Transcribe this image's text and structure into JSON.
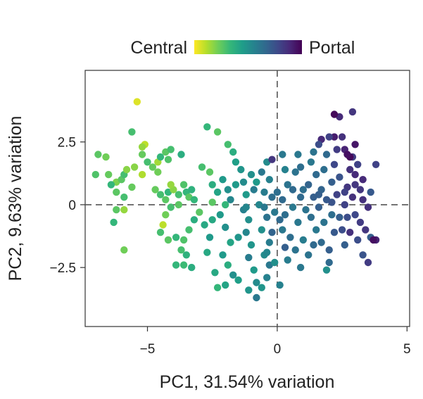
{
  "chart_data": {
    "type": "scatter",
    "xlabel": "PC1, 31.54% variation",
    "ylabel": "PC2, 9.63% variation",
    "xlim": [
      -7.4,
      5.1
    ],
    "ylim": [
      -4.85,
      5.35
    ],
    "xticks": [
      -5,
      0,
      5
    ],
    "xtick_labels": [
      "−5",
      "0",
      "5"
    ],
    "yticks": [
      -2.5,
      0,
      2.5
    ],
    "ytick_labels": [
      "−2.5",
      "0",
      "2.5"
    ],
    "reference_lines": {
      "x": 0,
      "y": 0,
      "style": "dashed"
    },
    "grid": false,
    "colorbar": {
      "low_label": "Central",
      "high_label": "Portal",
      "colormap": [
        "#fde725",
        "#b5de2b",
        "#6ece58",
        "#35b779",
        "#1f9e89",
        "#26828e",
        "#31688e",
        "#3e4989",
        "#482878",
        "#440154"
      ],
      "placement": "top"
    },
    "points": [
      {
        "x": -6.6,
        "y": 1.9,
        "c": 0.22
      },
      {
        "x": -6.9,
        "y": 2.0,
        "c": 0.26
      },
      {
        "x": -7.0,
        "y": 1.2,
        "c": 0.28
      },
      {
        "x": -6.5,
        "y": 1.2,
        "c": 0.24
      },
      {
        "x": -6.2,
        "y": 0.9,
        "c": 0.2
      },
      {
        "x": -6.4,
        "y": 0.8,
        "c": 0.34
      },
      {
        "x": -6.0,
        "y": 1.0,
        "c": 0.26
      },
      {
        "x": -5.9,
        "y": 1.2,
        "c": 0.3
      },
      {
        "x": -5.8,
        "y": 1.4,
        "c": 0.18
      },
      {
        "x": -6.2,
        "y": 0.5,
        "c": 0.26
      },
      {
        "x": -5.9,
        "y": 0.3,
        "c": 0.3
      },
      {
        "x": -6.2,
        "y": -0.2,
        "c": 0.26
      },
      {
        "x": -5.9,
        "y": -0.2,
        "c": 0.16
      },
      {
        "x": -6.3,
        "y": -0.7,
        "c": 0.34
      },
      {
        "x": -5.9,
        "y": -1.8,
        "c": 0.22
      },
      {
        "x": -5.4,
        "y": 4.1,
        "c": 0.05
      },
      {
        "x": -5.6,
        "y": 2.9,
        "c": 0.3
      },
      {
        "x": -5.1,
        "y": 2.4,
        "c": 0.1
      },
      {
        "x": -5.2,
        "y": 2.0,
        "c": 0.24
      },
      {
        "x": -5.5,
        "y": 1.5,
        "c": 0.18
      },
      {
        "x": -5.2,
        "y": 1.2,
        "c": 0.12
      },
      {
        "x": -5.0,
        "y": 1.7,
        "c": 0.3
      },
      {
        "x": -5.2,
        "y": 2.3,
        "c": 0.16
      },
      {
        "x": -4.8,
        "y": 1.5,
        "c": 0.24
      },
      {
        "x": -4.6,
        "y": 1.7,
        "c": 0.14
      },
      {
        "x": -4.5,
        "y": 1.9,
        "c": 0.34
      },
      {
        "x": -4.3,
        "y": 2.1,
        "c": 0.26
      },
      {
        "x": -4.2,
        "y": 1.8,
        "c": 0.28
      },
      {
        "x": -4.1,
        "y": 2.2,
        "c": 0.3
      },
      {
        "x": -3.7,
        "y": 2.0,
        "c": 0.38
      },
      {
        "x": -4.7,
        "y": 0.6,
        "c": 0.24
      },
      {
        "x": -4.5,
        "y": 0.4,
        "c": 0.3
      },
      {
        "x": -4.3,
        "y": 0.2,
        "c": 0.26
      },
      {
        "x": -4.2,
        "y": 0.5,
        "c": 0.34
      },
      {
        "x": -4.0,
        "y": 0.6,
        "c": 0.18
      },
      {
        "x": -3.8,
        "y": 0.4,
        "c": 0.3
      },
      {
        "x": -3.6,
        "y": 0.8,
        "c": 0.28
      },
      {
        "x": -3.5,
        "y": 0.5,
        "c": 0.34
      },
      {
        "x": -3.4,
        "y": 0.3,
        "c": 0.26
      },
      {
        "x": -3.3,
        "y": 0.6,
        "c": 0.36
      },
      {
        "x": -3.8,
        "y": 0.0,
        "c": 0.26
      },
      {
        "x": -4.1,
        "y": -0.1,
        "c": 0.3
      },
      {
        "x": -4.3,
        "y": -0.4,
        "c": 0.22
      },
      {
        "x": -4.4,
        "y": -0.8,
        "c": 0.1
      },
      {
        "x": -4.5,
        "y": -1.1,
        "c": 0.3
      },
      {
        "x": -4.2,
        "y": -1.4,
        "c": 0.26
      },
      {
        "x": -3.9,
        "y": -1.3,
        "c": 0.34
      },
      {
        "x": -3.6,
        "y": -1.4,
        "c": 0.28
      },
      {
        "x": -3.7,
        "y": -1.8,
        "c": 0.3
      },
      {
        "x": -3.5,
        "y": -2.0,
        "c": 0.36
      },
      {
        "x": -3.6,
        "y": -2.4,
        "c": 0.32
      },
      {
        "x": -3.3,
        "y": -2.5,
        "c": 0.38
      },
      {
        "x": -3.4,
        "y": -1.0,
        "c": 0.3
      },
      {
        "x": -3.2,
        "y": -0.6,
        "c": 0.38
      },
      {
        "x": -3.0,
        "y": -0.3,
        "c": 0.26
      },
      {
        "x": -2.8,
        "y": -0.8,
        "c": 0.4
      },
      {
        "x": -2.6,
        "y": -1.3,
        "c": 0.46
      },
      {
        "x": -2.7,
        "y": -1.9,
        "c": 0.4
      },
      {
        "x": -2.9,
        "y": 1.5,
        "c": 0.3
      },
      {
        "x": -2.6,
        "y": 1.3,
        "c": 0.26
      },
      {
        "x": -2.5,
        "y": 0.8,
        "c": 0.38
      },
      {
        "x": -2.3,
        "y": 0.5,
        "c": 0.42
      },
      {
        "x": -2.1,
        "y": 1.0,
        "c": 0.46
      },
      {
        "x": -1.9,
        "y": 0.6,
        "c": 0.5
      },
      {
        "x": -1.8,
        "y": 0.2,
        "c": 0.54
      },
      {
        "x": -2.0,
        "y": 0.0,
        "c": 0.34
      },
      {
        "x": -2.2,
        "y": -0.4,
        "c": 0.46
      },
      {
        "x": -2.0,
        "y": -0.9,
        "c": 0.5
      },
      {
        "x": -1.8,
        "y": -1.5,
        "c": 0.42
      },
      {
        "x": -2.1,
        "y": -2.0,
        "c": 0.46
      },
      {
        "x": -1.9,
        "y": -2.4,
        "c": 0.38
      },
      {
        "x": -1.7,
        "y": -2.8,
        "c": 0.5
      },
      {
        "x": -2.0,
        "y": -3.2,
        "c": 0.42
      },
      {
        "x": -2.7,
        "y": 3.1,
        "c": 0.34
      },
      {
        "x": -2.3,
        "y": 2.9,
        "c": 0.26
      },
      {
        "x": -1.9,
        "y": 2.4,
        "c": 0.3
      },
      {
        "x": -1.7,
        "y": 2.1,
        "c": 0.38
      },
      {
        "x": -1.6,
        "y": 1.7,
        "c": 0.44
      },
      {
        "x": -1.4,
        "y": 1.4,
        "c": 0.48
      },
      {
        "x": -1.3,
        "y": 0.9,
        "c": 0.52
      },
      {
        "x": -1.2,
        "y": 0.4,
        "c": 0.46
      },
      {
        "x": -1.3,
        "y": -0.2,
        "c": 0.56
      },
      {
        "x": -1.1,
        "y": -0.6,
        "c": 0.5
      },
      {
        "x": -1.2,
        "y": -1.1,
        "c": 0.54
      },
      {
        "x": -1.0,
        "y": -1.6,
        "c": 0.48
      },
      {
        "x": -1.1,
        "y": -2.1,
        "c": 0.58
      },
      {
        "x": -0.9,
        "y": -2.6,
        "c": 0.46
      },
      {
        "x": -0.8,
        "y": -3.1,
        "c": 0.52
      },
      {
        "x": -0.8,
        "y": -3.7,
        "c": 0.6
      },
      {
        "x": -0.6,
        "y": -3.3,
        "c": 0.48
      },
      {
        "x": -0.4,
        "y": -2.9,
        "c": 0.56
      },
      {
        "x": -0.3,
        "y": -2.4,
        "c": 0.6
      },
      {
        "x": -0.5,
        "y": -2.0,
        "c": 0.52
      },
      {
        "x": -0.3,
        "y": -1.5,
        "c": 0.58
      },
      {
        "x": -0.6,
        "y": -1.0,
        "c": 0.5
      },
      {
        "x": -0.4,
        "y": -0.5,
        "c": 0.62
      },
      {
        "x": -0.7,
        "y": 0.0,
        "c": 0.54
      },
      {
        "x": -0.5,
        "y": 0.5,
        "c": 0.58
      },
      {
        "x": -0.8,
        "y": 0.9,
        "c": 0.46
      },
      {
        "x": -0.6,
        "y": 1.3,
        "c": 0.6
      },
      {
        "x": -0.4,
        "y": 1.7,
        "c": 0.52
      },
      {
        "x": -0.2,
        "y": 1.8,
        "c": 0.84
      },
      {
        "x": -0.3,
        "y": 1.0,
        "c": 0.56
      },
      {
        "x": -0.2,
        "y": 0.3,
        "c": 0.64
      },
      {
        "x": -0.1,
        "y": -0.3,
        "c": 0.6
      },
      {
        "x": -0.2,
        "y": -1.1,
        "c": 0.68
      },
      {
        "x": -0.1,
        "y": -2.3,
        "c": 0.5
      },
      {
        "x": -1.5,
        "y": -3.0,
        "c": 0.44
      },
      {
        "x": -2.4,
        "y": -2.7,
        "c": 0.4
      },
      {
        "x": 0.2,
        "y": 2.0,
        "c": 0.6
      },
      {
        "x": 0.3,
        "y": 1.4,
        "c": 0.56
      },
      {
        "x": 0.4,
        "y": 0.8,
        "c": 0.62
      },
      {
        "x": 0.2,
        "y": 0.2,
        "c": 0.66
      },
      {
        "x": 0.3,
        "y": -0.4,
        "c": 0.64
      },
      {
        "x": 0.2,
        "y": -1.0,
        "c": 0.6
      },
      {
        "x": 0.3,
        "y": -1.7,
        "c": 0.7
      },
      {
        "x": 0.4,
        "y": -2.2,
        "c": 0.58
      },
      {
        "x": 0.5,
        "y": -1.3,
        "c": 0.64
      },
      {
        "x": 0.6,
        "y": -0.1,
        "c": 0.6
      },
      {
        "x": 0.6,
        "y": 0.6,
        "c": 0.66
      },
      {
        "x": 0.7,
        "y": 1.3,
        "c": 0.62
      },
      {
        "x": 0.8,
        "y": 2.0,
        "c": 0.6
      },
      {
        "x": 0.9,
        "y": 1.5,
        "c": 0.64
      },
      {
        "x": 0.9,
        "y": 0.3,
        "c": 0.66
      },
      {
        "x": 0.8,
        "y": -0.7,
        "c": 0.6
      },
      {
        "x": 1.0,
        "y": -1.4,
        "c": 0.58
      },
      {
        "x": 1.1,
        "y": -0.2,
        "c": 0.62
      },
      {
        "x": 1.2,
        "y": 0.8,
        "c": 0.68
      },
      {
        "x": 1.3,
        "y": 1.7,
        "c": 0.6
      },
      {
        "x": 1.4,
        "y": 2.1,
        "c": 0.62
      },
      {
        "x": 1.5,
        "y": 1.2,
        "c": 0.66
      },
      {
        "x": 1.4,
        "y": 0.3,
        "c": 0.7
      },
      {
        "x": 1.3,
        "y": -0.5,
        "c": 0.64
      },
      {
        "x": 1.5,
        "y": -1.0,
        "c": 0.6
      },
      {
        "x": 1.6,
        "y": -0.1,
        "c": 0.7
      },
      {
        "x": 1.7,
        "y": 0.6,
        "c": 0.68
      },
      {
        "x": 1.8,
        "y": 1.4,
        "c": 0.64
      },
      {
        "x": 1.9,
        "y": 2.0,
        "c": 0.66
      },
      {
        "x": 1.9,
        "y": 0.2,
        "c": 0.72
      },
      {
        "x": 1.8,
        "y": -0.7,
        "c": 0.62
      },
      {
        "x": 1.7,
        "y": -1.5,
        "c": 0.66
      },
      {
        "x": 2.0,
        "y": -1.8,
        "c": 0.7
      },
      {
        "x": 2.1,
        "y": -0.4,
        "c": 0.64
      },
      {
        "x": 2.1,
        "y": 0.9,
        "c": 0.7
      },
      {
        "x": 2.2,
        "y": 1.6,
        "c": 0.78
      },
      {
        "x": 2.3,
        "y": 2.2,
        "c": 0.82
      },
      {
        "x": 2.4,
        "y": 1.1,
        "c": 0.74
      },
      {
        "x": 2.3,
        "y": 0.4,
        "c": 0.8
      },
      {
        "x": 2.4,
        "y": -0.5,
        "c": 0.7
      },
      {
        "x": 2.5,
        "y": -1.0,
        "c": 0.76
      },
      {
        "x": 2.6,
        "y": -1.6,
        "c": 0.7
      },
      {
        "x": 2.6,
        "y": 0.0,
        "c": 0.8
      },
      {
        "x": 2.7,
        "y": 0.7,
        "c": 0.84
      },
      {
        "x": 2.8,
        "y": 1.4,
        "c": 0.86
      },
      {
        "x": 2.9,
        "y": 1.9,
        "c": 0.82
      },
      {
        "x": 3.0,
        "y": 1.2,
        "c": 0.88
      },
      {
        "x": 2.9,
        "y": 0.3,
        "c": 0.86
      },
      {
        "x": 3.0,
        "y": -0.4,
        "c": 0.78
      },
      {
        "x": 2.8,
        "y": -1.1,
        "c": 0.86
      },
      {
        "x": 3.1,
        "y": -1.4,
        "c": 0.76
      },
      {
        "x": 3.2,
        "y": -0.7,
        "c": 0.82
      },
      {
        "x": 3.2,
        "y": 0.6,
        "c": 0.84
      },
      {
        "x": 3.1,
        "y": 1.6,
        "c": 0.8
      },
      {
        "x": 3.3,
        "y": 1.0,
        "c": 0.88
      },
      {
        "x": 3.4,
        "y": -1.0,
        "c": 0.84
      },
      {
        "x": 3.3,
        "y": -2.0,
        "c": 0.74
      },
      {
        "x": 3.5,
        "y": -2.3,
        "c": 0.82
      },
      {
        "x": 3.6,
        "y": -1.3,
        "c": 0.7
      },
      {
        "x": 3.5,
        "y": -0.1,
        "c": 0.86
      },
      {
        "x": 3.6,
        "y": 0.5,
        "c": 0.72
      },
      {
        "x": 3.8,
        "y": 1.6,
        "c": 0.8
      },
      {
        "x": 3.8,
        "y": -1.4,
        "c": 0.9
      },
      {
        "x": 3.7,
        "y": -1.4,
        "c": 0.96
      },
      {
        "x": 2.2,
        "y": 2.7,
        "c": 0.92
      },
      {
        "x": 2.5,
        "y": 2.7,
        "c": 0.86
      },
      {
        "x": 2.4,
        "y": 3.5,
        "c": 0.88
      },
      {
        "x": 2.2,
        "y": 3.6,
        "c": 0.98
      },
      {
        "x": 2.9,
        "y": 3.7,
        "c": 0.84
      },
      {
        "x": 3.0,
        "y": 2.4,
        "c": 0.94
      },
      {
        "x": 2.6,
        "y": 2.2,
        "c": 0.9
      },
      {
        "x": 2.8,
        "y": 1.9,
        "c": 0.98
      },
      {
        "x": 2.7,
        "y": 2.0,
        "c": 0.96
      },
      {
        "x": 2.0,
        "y": 2.7,
        "c": 0.8
      },
      {
        "x": 1.7,
        "y": 2.6,
        "c": 0.88
      },
      {
        "x": 1.6,
        "y": 2.4,
        "c": 0.76
      },
      {
        "x": 2.0,
        "y": -2.3,
        "c": 0.66
      },
      {
        "x": 1.9,
        "y": -2.6,
        "c": 0.5
      },
      {
        "x": 1.2,
        "y": -2.0,
        "c": 0.62
      },
      {
        "x": 0.9,
        "y": -2.5,
        "c": 0.6
      },
      {
        "x": 0.1,
        "y": -3.2,
        "c": 0.56
      },
      {
        "x": -1.1,
        "y": -3.4,
        "c": 0.48
      },
      {
        "x": -2.3,
        "y": -3.3,
        "c": 0.34
      },
      {
        "x": -3.9,
        "y": -2.4,
        "c": 0.34
      },
      {
        "x": -4.1,
        "y": 0.8,
        "c": 0.16
      },
      {
        "x": -2.5,
        "y": 0.1,
        "c": 0.26
      },
      {
        "x": -1.6,
        "y": 0.8,
        "c": 0.46
      },
      {
        "x": -1.0,
        "y": 1.2,
        "c": 0.5
      },
      {
        "x": -0.9,
        "y": 0.6,
        "c": 0.58
      },
      {
        "x": -1.2,
        "y": -0.1,
        "c": 0.54
      },
      {
        "x": -0.5,
        "y": -0.1,
        "c": 0.6
      },
      {
        "x": 0.0,
        "y": 0.5,
        "c": 0.64
      },
      {
        "x": 0.1,
        "y": -0.6,
        "c": 0.66
      },
      {
        "x": 1.0,
        "y": 0.6,
        "c": 0.64
      },
      {
        "x": 1.6,
        "y": 0.4,
        "c": 0.7
      },
      {
        "x": 2.1,
        "y": 0.1,
        "c": 0.74
      },
      {
        "x": 2.6,
        "y": 0.5,
        "c": 0.8
      },
      {
        "x": 3.0,
        "y": 0.8,
        "c": 0.84
      },
      {
        "x": 3.3,
        "y": 0.2,
        "c": 0.86
      },
      {
        "x": 2.7,
        "y": -0.5,
        "c": 0.76
      },
      {
        "x": 2.2,
        "y": -1.1,
        "c": 0.72
      },
      {
        "x": 1.4,
        "y": -1.6,
        "c": 0.66
      },
      {
        "x": 0.7,
        "y": -1.8,
        "c": 0.62
      },
      {
        "x": -0.4,
        "y": -1.9,
        "c": 0.54
      },
      {
        "x": -1.5,
        "y": -1.3,
        "c": 0.48
      },
      {
        "x": -2.5,
        "y": -0.6,
        "c": 0.4
      },
      {
        "x": -3.2,
        "y": 0.2,
        "c": 0.34
      },
      {
        "x": -4.6,
        "y": 1.3,
        "c": 0.22
      },
      {
        "x": -5.6,
        "y": 0.7,
        "c": 0.24
      }
    ]
  }
}
